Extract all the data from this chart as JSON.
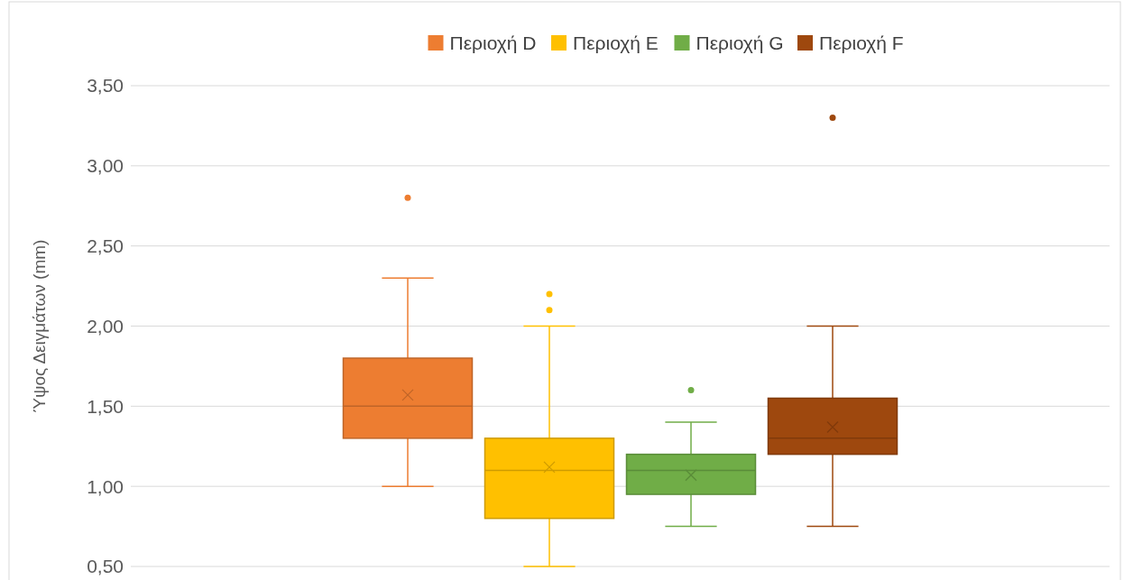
{
  "chart_data": {
    "type": "box",
    "ylabel": "Ύψος Δειγμάτων (mm)",
    "categories": [
      null
    ],
    "ylim": [
      0.5,
      3.5
    ],
    "yticks": [
      {
        "value": 0.5,
        "label": "0,50"
      },
      {
        "value": 1,
        "label": "1,00"
      },
      {
        "value": 1.5,
        "label": "1,50"
      },
      {
        "value": 2,
        "label": "2,00"
      },
      {
        "value": 2.5,
        "label": "2,50"
      },
      {
        "value": 3,
        "label": "3,00"
      },
      {
        "value": 3.5,
        "label": "3,50"
      }
    ],
    "grid": "y",
    "legend": "top",
    "series": [
      {
        "name": "Περιοχή D",
        "color": "#ed7d31",
        "boxes": [
          {
            "low": 1.0,
            "q1": 1.3,
            "median": 1.5,
            "q3": 1.8,
            "high": 2.3,
            "mean": 1.57,
            "outliers": [
              2.8
            ]
          }
        ]
      },
      {
        "name": "Περιοχή E",
        "color": "#ffc000",
        "boxes": [
          {
            "low": 0.5,
            "q1": 0.8,
            "median": 1.1,
            "q3": 1.3,
            "high": 2.0,
            "mean": 1.12,
            "outliers": [
              2.1,
              2.2
            ]
          }
        ]
      },
      {
        "name": "Περιοχή G",
        "color": "#70ad47",
        "boxes": [
          {
            "low": 0.75,
            "q1": 0.95,
            "median": 1.1,
            "q3": 1.2,
            "high": 1.4,
            "mean": 1.07,
            "outliers": [
              1.6
            ]
          }
        ]
      },
      {
        "name": "Περιοχή F",
        "color": "#9e480e",
        "boxes": [
          {
            "low": 0.75,
            "q1": 1.2,
            "median": 1.3,
            "q3": 1.55,
            "high": 2.0,
            "mean": 1.37,
            "outliers": [
              3.3
            ]
          }
        ]
      }
    ]
  }
}
